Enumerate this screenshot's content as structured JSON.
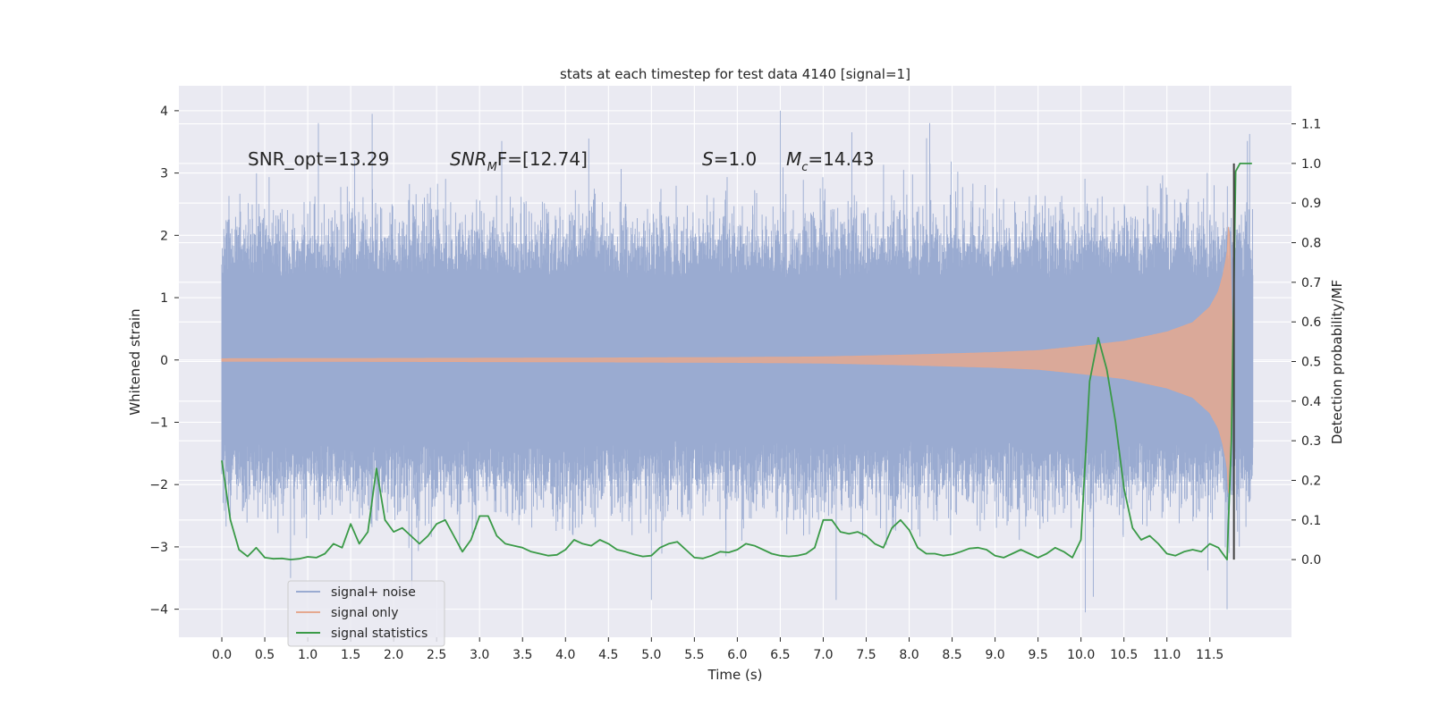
{
  "chart_data": {
    "type": "line",
    "title": "stats at each timestep for test data 4140 [signal=1]",
    "xlabel": "Time (s)",
    "ylabel_left": "Whitened strain",
    "ylabel_right": "Detection probability/MF",
    "xlim": [
      -0.5,
      12.45
    ],
    "ylim_left": [
      -4.45,
      4.4
    ],
    "ylim_right": [
      -0.196,
      1.196
    ],
    "x_ticks": [
      "0.0",
      "0.5",
      "1.0",
      "1.5",
      "2.0",
      "2.5",
      "3.0",
      "3.5",
      "4.0",
      "4.5",
      "5.0",
      "5.5",
      "6.0",
      "6.5",
      "7.0",
      "7.5",
      "8.0",
      "8.5",
      "9.0",
      "9.5",
      "10.0",
      "10.5",
      "11.0",
      "11.5"
    ],
    "y_ticks_left": [
      "−4",
      "−3",
      "−2",
      "−1",
      "0",
      "1",
      "2",
      "3",
      "4"
    ],
    "y_ticks_right": [
      "0.0",
      "0.1",
      "0.2",
      "0.3",
      "0.4",
      "0.5",
      "0.6",
      "0.7",
      "0.8",
      "0.9",
      "1.0",
      "1.1"
    ],
    "grid": true,
    "legend_position": "lower-left",
    "annotations": {
      "snr_opt": "SNR_opt=13.29",
      "snr_mf_main": "SNR",
      "snr_mf_sub": "M",
      "snr_mf_rest": "F=[12.74]",
      "s_main": "S",
      "s_rest": "=1.0",
      "mc_main": "M",
      "mc_sub": "c",
      "mc_rest": "=14.43"
    },
    "series": [
      {
        "name": "signal+ noise",
        "color": "#9aabd1",
        "axis": "left",
        "x_range": [
          0.0,
          12.0
        ],
        "envelope_typical": [
          -1.9,
          1.9
        ],
        "extreme_values": [
          {
            "x": 1.75,
            "y": 3.95
          },
          {
            "x": 6.5,
            "y": 4.0
          },
          {
            "x": 0.8,
            "y": -3.5
          },
          {
            "x": 5.0,
            "y": -3.85
          },
          {
            "x": 7.15,
            "y": -3.85
          },
          {
            "x": 10.05,
            "y": -4.05
          },
          {
            "x": 11.7,
            "y": -4.0
          }
        ]
      },
      {
        "name": "signal only",
        "color": "#e5a88f",
        "axis": "left",
        "x": [
          0.0,
          2.0,
          4.0,
          6.0,
          7.0,
          8.0,
          9.0,
          9.5,
          10.0,
          10.5,
          11.0,
          11.3,
          11.5,
          11.6,
          11.65,
          11.7,
          11.72,
          11.74,
          11.76,
          11.78
        ],
        "amplitude": [
          0.02,
          0.025,
          0.03,
          0.04,
          0.05,
          0.08,
          0.12,
          0.15,
          0.22,
          0.3,
          0.45,
          0.6,
          0.85,
          1.1,
          1.35,
          1.7,
          2.3,
          1.6,
          0.4,
          0.0
        ]
      },
      {
        "name": "signal statistics",
        "color": "#3a9a47",
        "axis": "right",
        "x": [
          0.0,
          0.1,
          0.2,
          0.3,
          0.4,
          0.5,
          0.6,
          0.7,
          0.8,
          0.9,
          1.0,
          1.1,
          1.2,
          1.3,
          1.4,
          1.5,
          1.6,
          1.7,
          1.8,
          1.9,
          2.0,
          2.1,
          2.2,
          2.3,
          2.4,
          2.5,
          2.6,
          2.7,
          2.8,
          2.9,
          3.0,
          3.1,
          3.2,
          3.3,
          3.4,
          3.5,
          3.6,
          3.7,
          3.8,
          3.9,
          4.0,
          4.1,
          4.2,
          4.3,
          4.4,
          4.5,
          4.6,
          4.7,
          4.8,
          4.9,
          5.0,
          5.1,
          5.2,
          5.3,
          5.4,
          5.5,
          5.6,
          5.7,
          5.8,
          5.9,
          6.0,
          6.1,
          6.2,
          6.3,
          6.4,
          6.5,
          6.6,
          6.7,
          6.8,
          6.9,
          7.0,
          7.1,
          7.2,
          7.3,
          7.4,
          7.5,
          7.6,
          7.7,
          7.8,
          7.9,
          8.0,
          8.1,
          8.2,
          8.3,
          8.4,
          8.5,
          8.6,
          8.7,
          8.8,
          8.9,
          9.0,
          9.1,
          9.2,
          9.3,
          9.4,
          9.5,
          9.6,
          9.7,
          9.8,
          9.9,
          10.0,
          10.1,
          10.2,
          10.3,
          10.4,
          10.5,
          10.6,
          10.7,
          10.8,
          10.9,
          11.0,
          11.1,
          11.2,
          11.3,
          11.4,
          11.5,
          11.6,
          11.7,
          11.75,
          11.8,
          11.85,
          11.9,
          11.95,
          11.99
        ],
        "values": [
          0.25,
          0.1,
          0.025,
          0.008,
          0.03,
          0.005,
          0.002,
          0.003,
          0.0,
          0.002,
          0.007,
          0.005,
          0.015,
          0.04,
          0.03,
          0.09,
          0.04,
          0.07,
          0.23,
          0.1,
          0.07,
          0.08,
          0.06,
          0.04,
          0.06,
          0.09,
          0.1,
          0.06,
          0.02,
          0.05,
          0.11,
          0.11,
          0.06,
          0.04,
          0.035,
          0.03,
          0.02,
          0.015,
          0.01,
          0.012,
          0.025,
          0.05,
          0.04,
          0.035,
          0.05,
          0.04,
          0.025,
          0.02,
          0.013,
          0.008,
          0.01,
          0.03,
          0.04,
          0.045,
          0.025,
          0.005,
          0.003,
          0.01,
          0.02,
          0.018,
          0.025,
          0.04,
          0.035,
          0.025,
          0.015,
          0.01,
          0.008,
          0.01,
          0.015,
          0.03,
          0.1,
          0.1,
          0.07,
          0.065,
          0.07,
          0.06,
          0.04,
          0.03,
          0.08,
          0.1,
          0.075,
          0.03,
          0.015,
          0.015,
          0.01,
          0.013,
          0.02,
          0.028,
          0.03,
          0.025,
          0.01,
          0.005,
          0.015,
          0.025,
          0.015,
          0.005,
          0.015,
          0.03,
          0.02,
          0.005,
          0.05,
          0.45,
          0.56,
          0.48,
          0.35,
          0.18,
          0.08,
          0.05,
          0.06,
          0.04,
          0.015,
          0.01,
          0.02,
          0.025,
          0.02,
          0.04,
          0.03,
          0.0,
          0.3,
          0.98,
          1.0,
          1.0,
          1.0,
          1.0
        ]
      }
    ]
  },
  "legend": {
    "items": [
      "signal+ noise",
      "signal only",
      "signal statistics"
    ]
  },
  "colors": {
    "plot_bg": "#eaeaf2",
    "grid": "#ffffff",
    "vertical_marker": "#404040"
  }
}
